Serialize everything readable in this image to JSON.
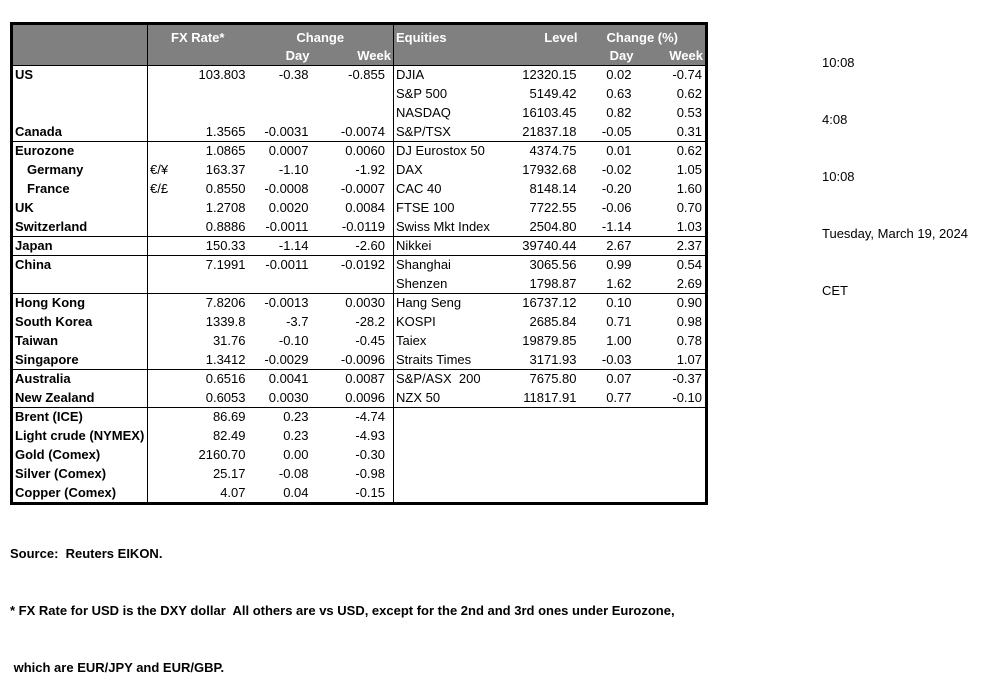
{
  "colors": {
    "header_bg": "#808080",
    "header_text": "#ffffff",
    "border": "#000000"
  },
  "header": {
    "fx_rate": "FX Rate*",
    "change": "Change",
    "day": "Day",
    "week": "Week",
    "equities": "Equities",
    "level": "Level",
    "change_pct": "Change (%)"
  },
  "timestamps": [
    "10:08",
    "4:08",
    "10:08",
    "Tuesday, March 19, 2024",
    "CET"
  ],
  "footer": {
    "line1": "Source:  Reuters EIKON.",
    "line2": "* FX Rate for USD is the DXY dollar  All others are vs USD, except for the 2nd and 3rd ones under Eurozone,",
    "line3": " which are EUR/JPY and EUR/GBP."
  },
  "rows": [
    {
      "name": "US",
      "sym": "",
      "rate": "103.803",
      "day": "-0.38",
      "week": "-0.855",
      "equity": "DJIA",
      "level": "12320.15",
      "eday": "0.02",
      "eweek": "-0.74",
      "divider": false,
      "indent": false
    },
    {
      "name": "",
      "sym": "",
      "rate": "",
      "day": "",
      "week": "",
      "equity": "S&P 500",
      "level": "5149.42",
      "eday": "0.63",
      "eweek": "0.62",
      "divider": false,
      "indent": false
    },
    {
      "name": "",
      "sym": "",
      "rate": "",
      "day": "",
      "week": "",
      "equity": "NASDAQ",
      "level": "16103.45",
      "eday": "0.82",
      "eweek": "0.53",
      "divider": false,
      "indent": false
    },
    {
      "name": "Canada",
      "sym": "",
      "rate": "1.3565",
      "day": "-0.0031",
      "week": "-0.0074",
      "equity": "S&P/TSX",
      "level": "21837.18",
      "eday": "-0.05",
      "eweek": "0.31",
      "divider": false,
      "indent": false
    },
    {
      "name": "Eurozone",
      "sym": "",
      "rate": "1.0865",
      "day": "0.0007",
      "week": "0.0060",
      "equity": "DJ Eurostox 50",
      "level": "4374.75",
      "eday": "0.01",
      "eweek": "0.62",
      "divider": true,
      "indent": false
    },
    {
      "name": "Germany",
      "sym": "€/¥",
      "rate": "163.37",
      "day": "-1.10",
      "week": "-1.92",
      "equity": "DAX",
      "level": "17932.68",
      "eday": "-0.02",
      "eweek": "1.05",
      "divider": false,
      "indent": true
    },
    {
      "name": "France",
      "sym": "€/£",
      "rate": "0.8550",
      "day": "-0.0008",
      "week": "-0.0007",
      "equity": "CAC 40",
      "level": "8148.14",
      "eday": "-0.20",
      "eweek": "1.60",
      "divider": false,
      "indent": true
    },
    {
      "name": "UK",
      "sym": "",
      "rate": "1.2708",
      "day": "0.0020",
      "week": "0.0084",
      "equity": "FTSE 100",
      "level": "7722.55",
      "eday": "-0.06",
      "eweek": "0.70",
      "divider": false,
      "indent": false
    },
    {
      "name": "Switzerland",
      "sym": "",
      "rate": "0.8886",
      "day": "-0.0011",
      "week": "-0.0119",
      "equity": "Swiss Mkt Index",
      "level": "2504.80",
      "eday": "-1.14",
      "eweek": "1.03",
      "divider": false,
      "indent": false
    },
    {
      "name": "Japan",
      "sym": "",
      "rate": "150.33",
      "day": "-1.14",
      "week": "-2.60",
      "equity": "Nikkei",
      "level": "39740.44",
      "eday": "2.67",
      "eweek": "2.37",
      "divider": true,
      "indent": false
    },
    {
      "name": "China",
      "sym": "",
      "rate": "7.1991",
      "day": "-0.0011",
      "week": "-0.0192",
      "equity": "Shanghai",
      "level": "3065.56",
      "eday": "0.99",
      "eweek": "0.54",
      "divider": true,
      "indent": false
    },
    {
      "name": "",
      "sym": "",
      "rate": "",
      "day": "",
      "week": "",
      "equity": "Shenzen",
      "level": "1798.87",
      "eday": "1.62",
      "eweek": "2.69",
      "divider": false,
      "indent": false
    },
    {
      "name": "Hong Kong",
      "sym": "",
      "rate": "7.8206",
      "day": "-0.0013",
      "week": "0.0030",
      "equity": "Hang Seng",
      "level": "16737.12",
      "eday": "0.10",
      "eweek": "0.90",
      "divider": true,
      "indent": false
    },
    {
      "name": "South Korea",
      "sym": "",
      "rate": "1339.8",
      "day": "-3.7",
      "week": "-28.2",
      "equity": "KOSPI",
      "level": "2685.84",
      "eday": "0.71",
      "eweek": "0.98",
      "divider": false,
      "indent": false
    },
    {
      "name": "Taiwan",
      "sym": "",
      "rate": "31.76",
      "day": "-0.10",
      "week": "-0.45",
      "equity": "Taiex",
      "level": "19879.85",
      "eday": "1.00",
      "eweek": "0.78",
      "divider": false,
      "indent": false
    },
    {
      "name": "Singapore",
      "sym": "",
      "rate": "1.3412",
      "day": "-0.0029",
      "week": "-0.0096",
      "equity": "Straits Times",
      "level": "3171.93",
      "eday": "-0.03",
      "eweek": "1.07",
      "divider": false,
      "indent": false
    },
    {
      "name": "Australia",
      "sym": "",
      "rate": "0.6516",
      "day": "0.0041",
      "week": "0.0087",
      "equity": "S&P/ASX  200",
      "level": "7675.80",
      "eday": "0.07",
      "eweek": "-0.37",
      "divider": true,
      "indent": false
    },
    {
      "name": "New Zealand",
      "sym": "",
      "rate": "0.6053",
      "day": "0.0030",
      "week": "0.0096",
      "equity": "NZX 50",
      "level": "11817.91",
      "eday": "0.77",
      "eweek": "-0.10",
      "divider": false,
      "indent": false
    },
    {
      "name": "Brent (ICE)",
      "sym": "",
      "rate": "86.69",
      "day": "0.23",
      "week": "-4.74",
      "equity": "",
      "level": "",
      "eday": "",
      "eweek": "",
      "divider": true,
      "indent": false
    },
    {
      "name": "Light crude (NYMEX)",
      "sym": "",
      "rate": "82.49",
      "day": "0.23",
      "week": "-4.93",
      "equity": "",
      "level": "",
      "eday": "",
      "eweek": "",
      "divider": false,
      "indent": false
    },
    {
      "name": "Gold (Comex)",
      "sym": "",
      "rate": "2160.70",
      "day": "0.00",
      "week": "-0.30",
      "equity": "",
      "level": "",
      "eday": "",
      "eweek": "",
      "divider": false,
      "indent": false
    },
    {
      "name": "Silver (Comex)",
      "sym": "",
      "rate": "25.17",
      "day": "-0.08",
      "week": "-0.98",
      "equity": "",
      "level": "",
      "eday": "",
      "eweek": "",
      "divider": false,
      "indent": false
    },
    {
      "name": "Copper (Comex)",
      "sym": "",
      "rate": "4.07",
      "day": "0.04",
      "week": "-0.15",
      "equity": "",
      "level": "",
      "eday": "",
      "eweek": "",
      "divider": false,
      "indent": false
    }
  ]
}
